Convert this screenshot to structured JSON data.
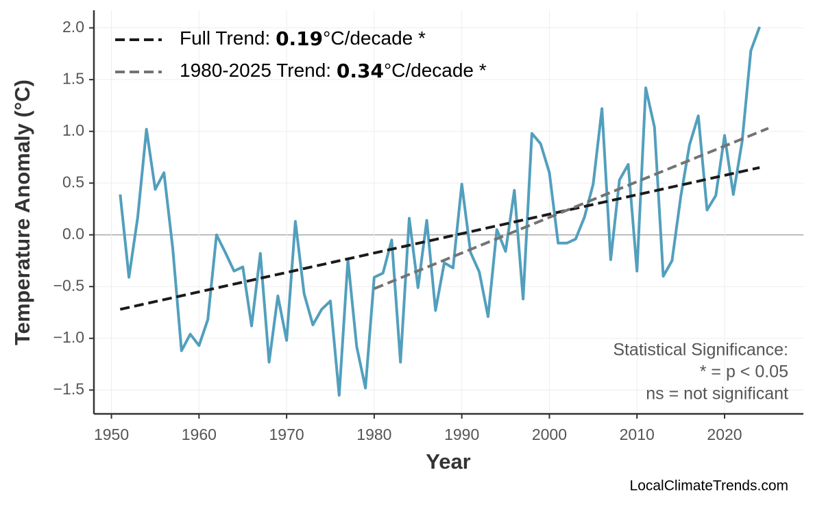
{
  "chart_data": {
    "type": "line",
    "x_label": "Year",
    "y_label": "Temperature Anomaly (°C)",
    "xlim": [
      1948,
      2029
    ],
    "ylim": [
      -1.73,
      2.17
    ],
    "xticks": [
      1950,
      1960,
      1970,
      1980,
      1990,
      2000,
      2010,
      2020
    ],
    "yticks": [
      {
        "value": -1.5,
        "label": "−1.5"
      },
      {
        "value": -1.0,
        "label": "−1.0"
      },
      {
        "value": -0.5,
        "label": "−0.5"
      },
      {
        "value": 0,
        "label": "0.0"
      },
      0.5,
      {
        "value": 1.0,
        "label": "1.0"
      },
      1.5,
      {
        "value": 2.0,
        "label": "2.0"
      }
    ],
    "grid": true,
    "legend": "upper left",
    "series": [
      {
        "color": "#529fbd",
        "x": [
          1951,
          1952,
          1953,
          1954,
          1955,
          1956,
          1957,
          1958,
          1959,
          1960,
          1961,
          1962,
          1963,
          1964,
          1965,
          1966,
          1967,
          1968,
          1969,
          1970,
          1971,
          1972,
          1973,
          1974,
          1975,
          1976,
          1977,
          1978,
          1979,
          1980,
          1981,
          1982,
          1983,
          1984,
          1985,
          1986,
          1987,
          1988,
          1989,
          1990,
          1991,
          1992,
          1993,
          1994,
          1995,
          1996,
          1997,
          1998,
          1999,
          2000,
          2001,
          2002,
          2003,
          2004,
          2005,
          2006,
          2007,
          2008,
          2009,
          2010,
          2011,
          2012,
          2013,
          2014,
          2015,
          2016,
          2017,
          2018,
          2019,
          2020,
          2021,
          2022,
          2023,
          2024
        ],
        "values": [
          0.39,
          -0.41,
          0.17,
          1.02,
          0.44,
          0.6,
          -0.13,
          -1.12,
          -0.96,
          -1.07,
          -0.82,
          0.0,
          -0.17,
          -0.35,
          -0.31,
          -0.88,
          -0.18,
          -1.23,
          -0.59,
          -1.02,
          0.13,
          -0.57,
          -0.87,
          -0.72,
          -0.64,
          -1.55,
          -0.24,
          -1.08,
          -1.48,
          -0.41,
          -0.37,
          -0.05,
          -1.23,
          0.16,
          -0.51,
          0.14,
          -0.73,
          -0.27,
          -0.32,
          0.49,
          -0.17,
          -0.36,
          -0.79,
          0.05,
          -0.16,
          0.43,
          -0.62,
          0.98,
          0.88,
          0.6,
          -0.08,
          -0.08,
          -0.04,
          0.17,
          0.49,
          1.22,
          -0.24,
          0.53,
          0.68,
          -0.35,
          1.42,
          1.04,
          -0.4,
          -0.25,
          0.37,
          0.87,
          1.15,
          0.24,
          0.38,
          0.96,
          0.39,
          0.9,
          1.78,
          2.01
        ]
      },
      {
        "name": "Full Trend: ",
        "rate": "0.19",
        "unit": "°C/decade *",
        "color": "#1a1a1a",
        "dash": true,
        "x": [
          1951,
          2024
        ],
        "values": [
          -0.72,
          0.65
        ]
      },
      {
        "name": "1980-2025 Trend: ",
        "rate": "0.34",
        "unit": "°C/decade *",
        "color": "#737373",
        "dash": true,
        "x": [
          1980,
          2025
        ],
        "values": [
          -0.52,
          1.03
        ]
      }
    ],
    "annotation": [
      "Statistical Significance:",
      "* = p < 0.05",
      "ns = not significant"
    ],
    "source": "LocalClimateTrends.com"
  }
}
